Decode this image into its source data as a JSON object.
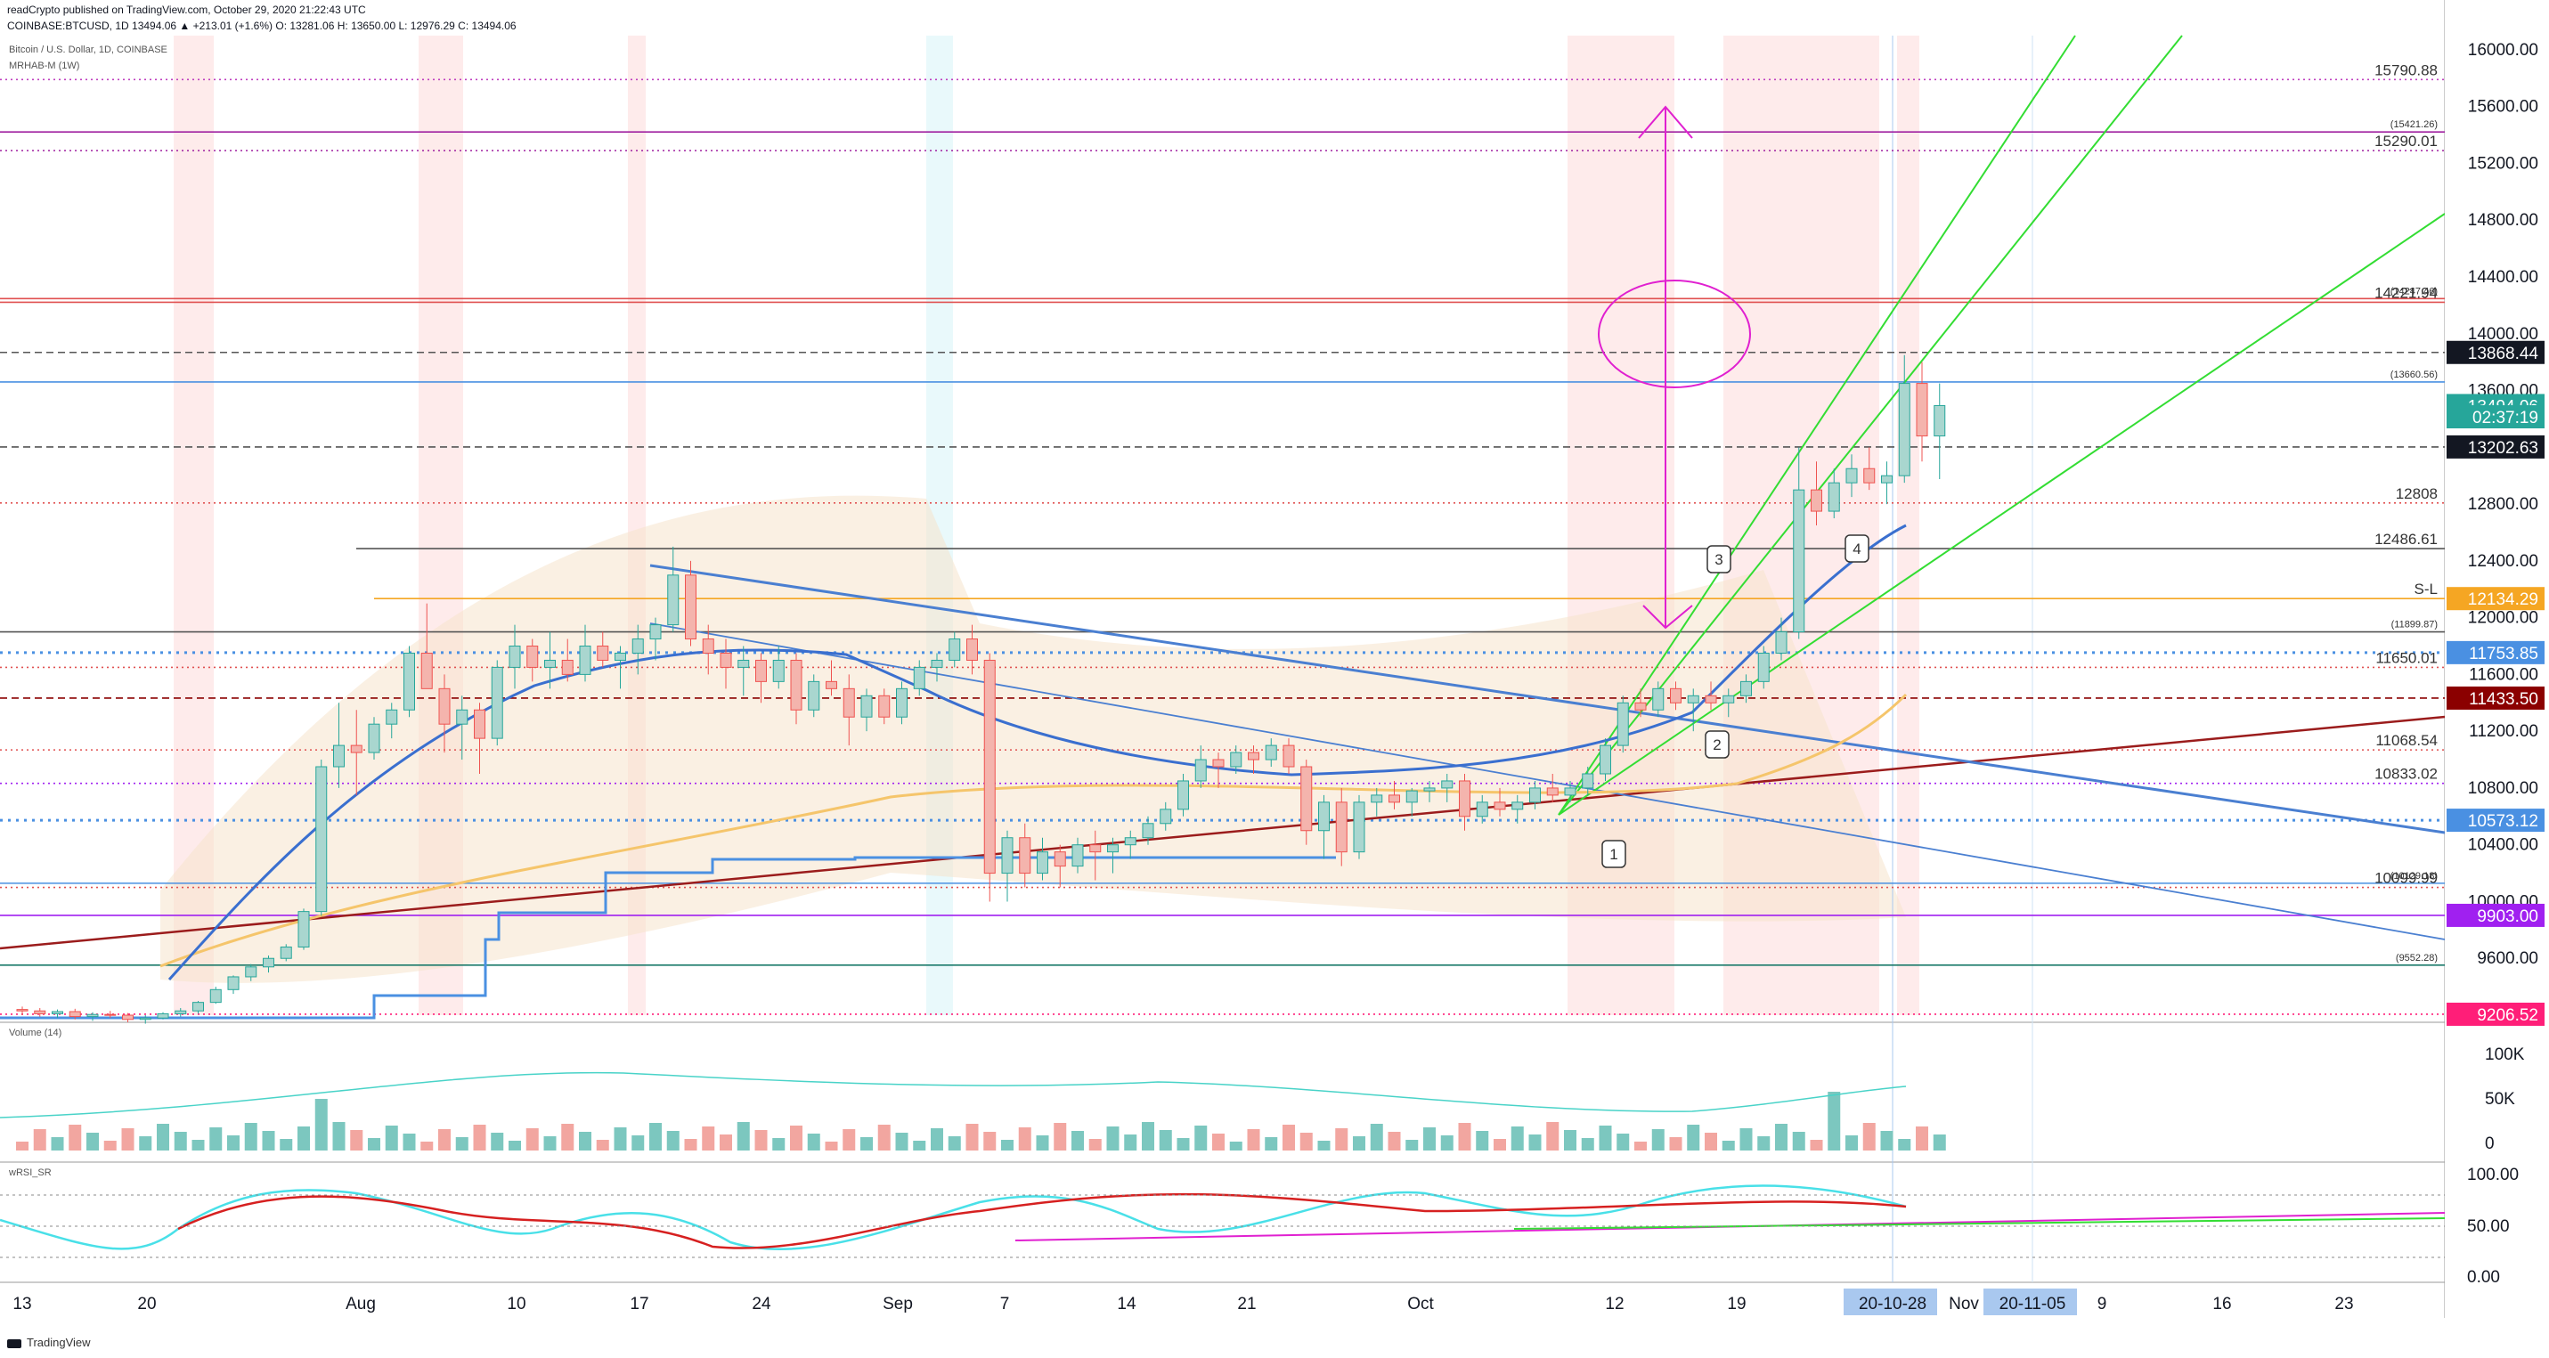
{
  "header": {
    "published": "readCrypto published on TradingView.com, October 29, 2020 21:22:43 UTC",
    "ohlc": "COINBASE:BTCUSD, 1D 13494.06 ▲ +213.01 (+1.6%) O: 13281.06 H: 13650.00 L: 12976.29 C: 13494.06",
    "symbol": "Bitcoin / U.S. Dollar, 1D, COINBASE",
    "indicator": "MRHAB-M (1W)"
  },
  "panes": {
    "volume_label": "Volume (14)",
    "wrsi_label": "wRSI_SR"
  },
  "footer": {
    "logo": "TradingView"
  },
  "colors": {
    "up": "#26a69a",
    "down": "#ef5350",
    "up_fill": "#a9d6cf",
    "down_fill": "#f4b4ad",
    "green_line": "#33dd33",
    "blue_line": "#4a7fd1",
    "maroon": "#9b1c1c",
    "magenta": "#e020d0",
    "orange": "#f5a623",
    "purple": "#a020f0"
  },
  "chart_data": {
    "type": "candlestick",
    "y_axis": {
      "min": 9200,
      "max": 16100,
      "ticks": [
        "16000.00",
        "15600.00",
        "15200.00",
        "14800.00",
        "14400.00",
        "14000.00",
        "13600.00",
        "13200.00",
        "12800.00",
        "12400.00",
        "12000.00",
        "11600.00",
        "11200.00",
        "10800.00",
        "10400.00",
        "10000.00",
        "9600.00"
      ]
    },
    "x_axis": {
      "ticks": [
        "13",
        "20",
        "Aug",
        "10",
        "17",
        "24",
        "Sep",
        "7",
        "14",
        "21",
        "Oct",
        "12",
        "19",
        "20-10-28",
        "Nov",
        "20-11-05",
        "9",
        "16",
        "23"
      ]
    },
    "price_labels": [
      {
        "value": 13868.44,
        "text": "13868.44",
        "bg": "#131722"
      },
      {
        "value": 13494.06,
        "text": "13494.06",
        "bg": "#26a69a"
      },
      {
        "value": 13415,
        "text": "02:37:19",
        "bg": "#26a69a"
      },
      {
        "value": 13202.63,
        "text": "13202.63",
        "bg": "#131722"
      },
      {
        "value": 12134.29,
        "text": "12134.29",
        "bg": "#f5a623"
      },
      {
        "value": 11753.85,
        "text": "11753.85",
        "bg": "#4a90e2"
      },
      {
        "value": 11433.5,
        "text": "11433.50",
        "bg": "#8b0000"
      },
      {
        "value": 10573.12,
        "text": "10573.12",
        "bg": "#4a90e2"
      },
      {
        "value": 9903.0,
        "text": "9903.00",
        "bg": "#a020f0"
      },
      {
        "value": 9206.52,
        "text": "9206.52",
        "bg": "#ff1e78"
      }
    ],
    "level_lines": [
      {
        "value": 15790.88,
        "text": "15790.88",
        "color": "#c040c0",
        "style": "dotted"
      },
      {
        "value": 15421.26,
        "text": "(15421.26)",
        "color": "#a020a0",
        "style": "solid"
      },
      {
        "value": 15290.01,
        "text": "15290.01",
        "color": "#a020a0",
        "style": "dotted"
      },
      {
        "value": 14247.46,
        "text": "(14247.46)",
        "color": "#e05050",
        "style": "solid"
      },
      {
        "value": 14221.94,
        "text": "14221.94",
        "color": "#e05050",
        "style": "solid"
      },
      {
        "value": 13868.44,
        "text": "",
        "color": "#555555",
        "style": "dashed"
      },
      {
        "value": 13660.56,
        "text": "(13660.56)",
        "color": "#4a90e2",
        "style": "solid"
      },
      {
        "value": 13202.63,
        "text": "",
        "color": "#555555",
        "style": "dashed"
      },
      {
        "value": 12808,
        "text": "12808",
        "color": "#e05050",
        "style": "dotted"
      },
      {
        "value": 12486.61,
        "text": "12486.61",
        "color": "#555555",
        "style": "solid"
      },
      {
        "value": 12134.29,
        "text": "S-L",
        "color": "#f5a623",
        "style": "solid"
      },
      {
        "value": 11899.87,
        "text": "(11899.87)",
        "color": "#555555",
        "style": "solid"
      },
      {
        "value": 11753.85,
        "text": "",
        "color": "#4a90e2",
        "style": "dotted-bold"
      },
      {
        "value": 11650.01,
        "text": "11650.01",
        "color": "#e05050",
        "style": "dotted"
      },
      {
        "value": 11433.5,
        "text": "",
        "color": "#8b0000",
        "style": "dashed"
      },
      {
        "value": 11068.54,
        "text": "11068.54",
        "color": "#e05050",
        "style": "dotted"
      },
      {
        "value": 10833.02,
        "text": "10833.02",
        "color": "#a020f0",
        "style": "dotted"
      },
      {
        "value": 10573.12,
        "text": "",
        "color": "#4a90e2",
        "style": "dotted-bold"
      },
      {
        "value": 10129.18,
        "text": "(10129.18)",
        "color": "#4a90e2",
        "style": "solid"
      },
      {
        "value": 10099.99,
        "text": "10099.99",
        "color": "#e05050",
        "style": "dotted"
      },
      {
        "value": 9903.0,
        "text": "",
        "color": "#a020f0",
        "style": "solid"
      },
      {
        "value": 9552.28,
        "text": "(9552.28)",
        "color": "#1a7a6a",
        "style": "solid"
      },
      {
        "value": 9206.52,
        "text": "",
        "color": "#ff1e78",
        "style": "dotted"
      }
    ],
    "annotations": [
      "1",
      "2",
      "3",
      "4"
    ],
    "volume_axis": [
      "100K",
      "50K",
      "0"
    ],
    "wrsi_axis": [
      "100.00",
      "50.00",
      "0.00"
    ],
    "candles": [
      [
        9240,
        9260,
        9200,
        9230
      ],
      [
        9230,
        9250,
        9190,
        9210
      ],
      [
        9210,
        9240,
        9180,
        9225
      ],
      [
        9225,
        9245,
        9170,
        9190
      ],
      [
        9190,
        9220,
        9160,
        9205
      ],
      [
        9205,
        9230,
        9180,
        9200
      ],
      [
        9200,
        9215,
        9150,
        9170
      ],
      [
        9170,
        9200,
        9140,
        9180
      ],
      [
        9180,
        9220,
        9170,
        9210
      ],
      [
        9210,
        9250,
        9190,
        9230
      ],
      [
        9230,
        9300,
        9210,
        9290
      ],
      [
        9290,
        9400,
        9280,
        9380
      ],
      [
        9380,
        9480,
        9350,
        9470
      ],
      [
        9470,
        9560,
        9440,
        9540
      ],
      [
        9540,
        9620,
        9500,
        9600
      ],
      [
        9600,
        9700,
        9580,
        9680
      ],
      [
        9680,
        9950,
        9660,
        9930
      ],
      [
        9930,
        11000,
        9900,
        10950
      ],
      [
        10950,
        11400,
        10800,
        11100
      ],
      [
        11100,
        11350,
        10750,
        11050
      ],
      [
        11050,
        11300,
        11000,
        11250
      ],
      [
        11250,
        11400,
        11150,
        11350
      ],
      [
        11350,
        11800,
        11300,
        11750
      ],
      [
        11750,
        12100,
        11500,
        11500
      ],
      [
        11500,
        11600,
        11050,
        11250
      ],
      [
        11250,
        11450,
        11000,
        11350
      ],
      [
        11350,
        11400,
        10900,
        11150
      ],
      [
        11150,
        11700,
        11100,
        11650
      ],
      [
        11650,
        11950,
        11500,
        11800
      ],
      [
        11800,
        11850,
        11550,
        11650
      ],
      [
        11650,
        11900,
        11500,
        11700
      ],
      [
        11700,
        11850,
        11550,
        11600
      ],
      [
        11600,
        11950,
        11550,
        11800
      ],
      [
        11800,
        11900,
        11650,
        11700
      ],
      [
        11700,
        11800,
        11500,
        11750
      ],
      [
        11750,
        11950,
        11600,
        11850
      ],
      [
        11850,
        12000,
        11700,
        11950
      ],
      [
        11950,
        12500,
        11900,
        12300
      ],
      [
        12300,
        12400,
        11800,
        11850
      ],
      [
        11850,
        11950,
        11600,
        11750
      ],
      [
        11750,
        11850,
        11500,
        11650
      ],
      [
        11650,
        11800,
        11450,
        11700
      ],
      [
        11700,
        11750,
        11400,
        11550
      ],
      [
        11550,
        11800,
        11500,
        11700
      ],
      [
        11700,
        11750,
        11250,
        11350
      ],
      [
        11350,
        11600,
        11300,
        11550
      ],
      [
        11550,
        11700,
        11450,
        11500
      ],
      [
        11500,
        11600,
        11100,
        11300
      ],
      [
        11300,
        11500,
        11200,
        11450
      ],
      [
        11450,
        11500,
        11250,
        11300
      ],
      [
        11300,
        11550,
        11250,
        11500
      ],
      [
        11500,
        11700,
        11450,
        11650
      ],
      [
        11650,
        11750,
        11550,
        11700
      ],
      [
        11700,
        11900,
        11650,
        11850
      ],
      [
        11850,
        11950,
        11600,
        11700
      ],
      [
        11700,
        11750,
        10000,
        10200
      ],
      [
        10200,
        10500,
        10000,
        10450
      ],
      [
        10450,
        10550,
        10100,
        10200
      ],
      [
        10200,
        10450,
        10150,
        10350
      ],
      [
        10350,
        10400,
        10100,
        10250
      ],
      [
        10250,
        10450,
        10200,
        10400
      ],
      [
        10400,
        10500,
        10150,
        10350
      ],
      [
        10350,
        10450,
        10200,
        10400
      ],
      [
        10400,
        10500,
        10300,
        10450
      ],
      [
        10450,
        10600,
        10400,
        10550
      ],
      [
        10550,
        10700,
        10500,
        10650
      ],
      [
        10650,
        10900,
        10600,
        10850
      ],
      [
        10850,
        11100,
        10800,
        11000
      ],
      [
        11000,
        11050,
        10800,
        10950
      ],
      [
        10950,
        11100,
        10900,
        11050
      ],
      [
        11050,
        11100,
        10900,
        11000
      ],
      [
        11000,
        11150,
        10950,
        11100
      ],
      [
        11100,
        11150,
        10900,
        10950
      ],
      [
        10950,
        11000,
        10400,
        10500
      ],
      [
        10500,
        10750,
        10300,
        10700
      ],
      [
        10700,
        10800,
        10250,
        10350
      ],
      [
        10350,
        10750,
        10300,
        10700
      ],
      [
        10700,
        10800,
        10600,
        10750
      ],
      [
        10750,
        10850,
        10650,
        10700
      ],
      [
        10700,
        10800,
        10600,
        10780
      ],
      [
        10780,
        10850,
        10700,
        10800
      ],
      [
        10800,
        10900,
        10700,
        10850
      ],
      [
        10850,
        10900,
        10500,
        10600
      ],
      [
        10600,
        10750,
        10550,
        10700
      ],
      [
        10700,
        10800,
        10600,
        10650
      ],
      [
        10650,
        10750,
        10550,
        10700
      ],
      [
        10700,
        10850,
        10650,
        10800
      ],
      [
        10800,
        10900,
        10700,
        10750
      ],
      [
        10750,
        10850,
        10700,
        10800
      ],
      [
        10800,
        10950,
        10750,
        10900
      ],
      [
        10900,
        11150,
        10850,
        11100
      ],
      [
        11100,
        11450,
        11050,
        11400
      ],
      [
        11400,
        11500,
        11300,
        11350
      ],
      [
        11350,
        11550,
        11300,
        11500
      ],
      [
        11500,
        11550,
        11350,
        11400
      ],
      [
        11400,
        11500,
        11200,
        11450
      ],
      [
        11450,
        11550,
        11350,
        11400
      ],
      [
        11400,
        11500,
        11300,
        11450
      ],
      [
        11450,
        11600,
        11400,
        11550
      ],
      [
        11550,
        11800,
        11500,
        11750
      ],
      [
        11750,
        12000,
        11700,
        11900
      ],
      [
        11900,
        13200,
        11850,
        12900
      ],
      [
        12900,
        13100,
        12650,
        12750
      ],
      [
        12750,
        13050,
        12700,
        12950
      ],
      [
        12950,
        13150,
        12850,
        13050
      ],
      [
        13050,
        13200,
        12900,
        12950
      ],
      [
        12950,
        13100,
        12800,
        13000
      ],
      [
        13000,
        13850,
        12950,
        13650
      ],
      [
        13650,
        13800,
        13100,
        13280
      ],
      [
        13280,
        13650,
        12976,
        13494
      ]
    ]
  }
}
